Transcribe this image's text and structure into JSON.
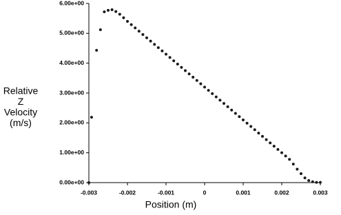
{
  "chart_data": {
    "type": "scatter",
    "x_label": "Position (m)",
    "y_label": [
      "Relative",
      "Z",
      "Velocity",
      "(m/s)"
    ],
    "color": "#1a1a1a",
    "grid": false,
    "xlim": [
      -0.003,
      0.003
    ],
    "ylim": [
      0,
      6
    ],
    "xticks": [
      -0.003,
      -0.002,
      -0.001,
      0,
      0.001,
      0.002,
      0.003
    ],
    "yticks": [
      {
        "value": 0,
        "label": "0.00e+00"
      },
      {
        "value": 1,
        "label": "1.00e+00"
      },
      {
        "value": 2,
        "label": "2.00e+00"
      },
      {
        "value": 3,
        "label": "3.00e+00"
      },
      {
        "value": 4,
        "label": "4.00e+00"
      },
      {
        "value": 5,
        "label": "5.00e+00"
      },
      {
        "value": 6,
        "label": "6.00e+00"
      }
    ],
    "x": [
      -0.003,
      -0.00293,
      -0.0028,
      -0.0027,
      -0.0026,
      -0.0025,
      -0.0024,
      -0.0023,
      -0.0022,
      -0.0021,
      -0.002,
      -0.0019,
      -0.0018,
      -0.0017,
      -0.0016,
      -0.0015,
      -0.0014,
      -0.0013,
      -0.0012,
      -0.0011,
      -0.001,
      -0.0009,
      -0.0008,
      -0.0007,
      -0.0006,
      -0.0005,
      -0.0004,
      -0.0003,
      -0.0002,
      -0.0001,
      0,
      0.0001,
      0.0002,
      0.0003,
      0.0004,
      0.0005,
      0.0006,
      0.0007,
      0.0008,
      0.0009,
      0.001,
      0.0011,
      0.0012,
      0.0013,
      0.0014,
      0.0015,
      0.0016,
      0.0017,
      0.0018,
      0.0019,
      0.002,
      0.0021,
      0.0022,
      0.0023,
      0.0024,
      0.0025,
      0.0026,
      0.0027,
      0.0028,
      0.0029,
      0.003
    ],
    "values": [
      0,
      2.19,
      4.43,
      5.12,
      5.72,
      5.77,
      5.79,
      5.73,
      5.64,
      5.52,
      5.4,
      5.29,
      5.18,
      5.07,
      4.96,
      4.85,
      4.74,
      4.63,
      4.52,
      4.41,
      4.3,
      4.19,
      4.08,
      3.97,
      3.86,
      3.75,
      3.64,
      3.53,
      3.42,
      3.31,
      3.2,
      3.09,
      2.98,
      2.87,
      2.76,
      2.65,
      2.54,
      2.43,
      2.32,
      2.21,
      2.1,
      1.99,
      1.88,
      1.77,
      1.66,
      1.55,
      1.44,
      1.33,
      1.22,
      1.11,
      1.0,
      0.89,
      0.78,
      0.62,
      0.45,
      0.3,
      0.16,
      0.07,
      0.03,
      0.01,
      0.01
    ]
  }
}
